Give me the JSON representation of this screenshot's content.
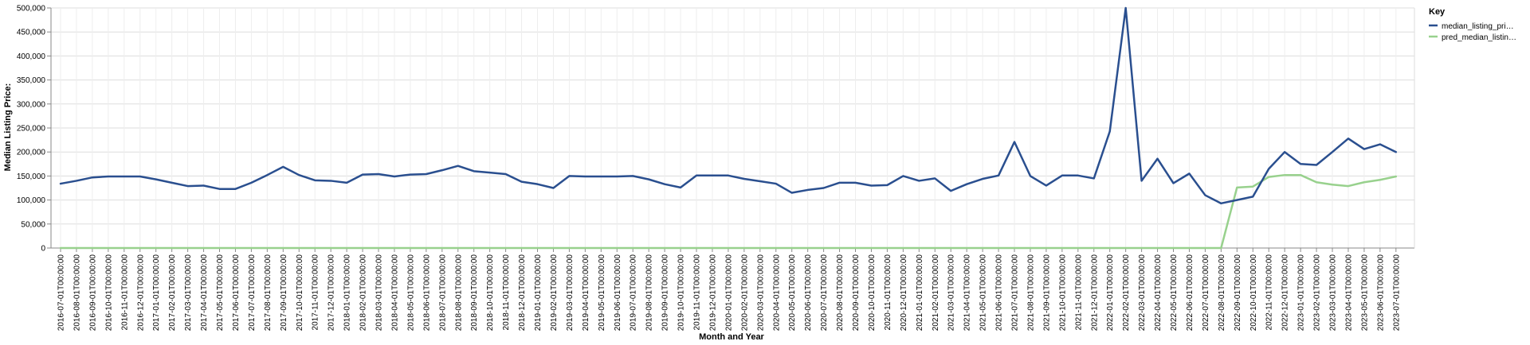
{
  "chart_data": {
    "type": "line",
    "xlabel": "Month and Year",
    "ylabel": "Median Listing Price:",
    "ylim": [
      0,
      500000
    ],
    "yticks": [
      "0",
      "50,000",
      "100,000",
      "150,000",
      "200,000",
      "250,000",
      "300,000",
      "350,000",
      "400,000",
      "450,000",
      "500,000"
    ],
    "grid": true,
    "legend": {
      "title": "Key",
      "position": "right",
      "labels": [
        "median_listing_pri…",
        "pred_median_listin…"
      ]
    },
    "x": [
      "2016-07-01T00:00:00",
      "2016-08-01T00:00:00",
      "2016-09-01T00:00:00",
      "2016-10-01T00:00:00",
      "2016-11-01T00:00:00",
      "2016-12-01T00:00:00",
      "2017-01-01T00:00:00",
      "2017-02-01T00:00:00",
      "2017-03-01T00:00:00",
      "2017-04-01T00:00:00",
      "2017-05-01T00:00:00",
      "2017-06-01T00:00:00",
      "2017-07-01T00:00:00",
      "2017-08-01T00:00:00",
      "2017-09-01T00:00:00",
      "2017-10-01T00:00:00",
      "2017-11-01T00:00:00",
      "2017-12-01T00:00:00",
      "2018-01-01T00:00:00",
      "2018-02-01T00:00:00",
      "2018-03-01T00:00:00",
      "2018-04-01T00:00:00",
      "2018-05-01T00:00:00",
      "2018-06-01T00:00:00",
      "2018-07-01T00:00:00",
      "2018-08-01T00:00:00",
      "2018-09-01T00:00:00",
      "2018-10-01T00:00:00",
      "2018-11-01T00:00:00",
      "2018-12-01T00:00:00",
      "2019-01-01T00:00:00",
      "2019-02-01T00:00:00",
      "2019-03-01T00:00:00",
      "2019-04-01T00:00:00",
      "2019-05-01T00:00:00",
      "2019-06-01T00:00:00",
      "2019-07-01T00:00:00",
      "2019-08-01T00:00:00",
      "2019-09-01T00:00:00",
      "2019-10-01T00:00:00",
      "2019-11-01T00:00:00",
      "2019-12-01T00:00:00",
      "2020-01-01T00:00:00",
      "2020-02-01T00:00:00",
      "2020-03-01T00:00:00",
      "2020-04-01T00:00:00",
      "2020-05-01T00:00:00",
      "2020-06-01T00:00:00",
      "2020-07-01T00:00:00",
      "2020-08-01T00:00:00",
      "2020-09-01T00:00:00",
      "2020-10-01T00:00:00",
      "2020-11-01T00:00:00",
      "2020-12-01T00:00:00",
      "2021-01-01T00:00:00",
      "2021-02-01T00:00:00",
      "2021-03-01T00:00:00",
      "2021-04-01T00:00:00",
      "2021-05-01T00:00:00",
      "2021-06-01T00:00:00",
      "2021-07-01T00:00:00",
      "2021-08-01T00:00:00",
      "2021-09-01T00:00:00",
      "2021-10-01T00:00:00",
      "2021-11-01T00:00:00",
      "2021-12-01T00:00:00",
      "2022-01-01T00:00:00",
      "2022-02-01T00:00:00",
      "2022-03-01T00:00:00",
      "2022-04-01T00:00:00",
      "2022-05-01T00:00:00",
      "2022-06-01T00:00:00",
      "2022-07-01T00:00:00",
      "2022-08-01T00:00:00",
      "2022-09-01T00:00:00",
      "2022-10-01T00:00:00",
      "2022-11-01T00:00:00",
      "2022-12-01T00:00:00",
      "2023-01-01T00:00:00",
      "2023-02-01T00:00:00",
      "2023-03-01T00:00:00",
      "2023-04-01T00:00:00",
      "2023-05-01T00:00:00",
      "2023-06-01T00:00:00",
      "2023-07-01T00:00:00"
    ],
    "series": [
      {
        "name": "median_listing_pri…",
        "color": "#2a4f8f",
        "values": [
          134000,
          140000,
          147000,
          149000,
          149000,
          149000,
          143000,
          136000,
          129000,
          130000,
          123000,
          123000,
          136000,
          152000,
          169000,
          152000,
          141000,
          140000,
          136000,
          153000,
          154000,
          149000,
          153000,
          154000,
          162000,
          171000,
          160000,
          157000,
          154000,
          138000,
          133000,
          125000,
          150000,
          149000,
          149000,
          149000,
          150000,
          143000,
          133000,
          126000,
          151000,
          151000,
          151000,
          144000,
          139000,
          134000,
          115000,
          121000,
          125000,
          136000,
          136000,
          130000,
          131000,
          150000,
          140000,
          145000,
          119000,
          133000,
          144000,
          151000,
          221000,
          150000,
          130000,
          151000,
          151000,
          145000,
          243000,
          500000,
          140000,
          186000,
          135000,
          155000,
          110000,
          93000,
          100000,
          107000,
          165000,
          200000,
          175000,
          173000,
          200000,
          228000,
          206000,
          216000,
          200000
        ]
      },
      {
        "name": "pred_median_listin…",
        "color": "#98d18d",
        "values": [
          0,
          0,
          0,
          0,
          0,
          0,
          0,
          0,
          0,
          0,
          0,
          0,
          0,
          0,
          0,
          0,
          0,
          0,
          0,
          0,
          0,
          0,
          0,
          0,
          0,
          0,
          0,
          0,
          0,
          0,
          0,
          0,
          0,
          0,
          0,
          0,
          0,
          0,
          0,
          0,
          0,
          0,
          0,
          0,
          0,
          0,
          0,
          0,
          0,
          0,
          0,
          0,
          0,
          0,
          0,
          0,
          0,
          0,
          0,
          0,
          0,
          0,
          0,
          0,
          0,
          0,
          0,
          0,
          0,
          0,
          0,
          0,
          0,
          0,
          126000,
          128000,
          148000,
          152000,
          152000,
          137000,
          132000,
          129000,
          137000,
          142000,
          149000
        ]
      }
    ]
  }
}
